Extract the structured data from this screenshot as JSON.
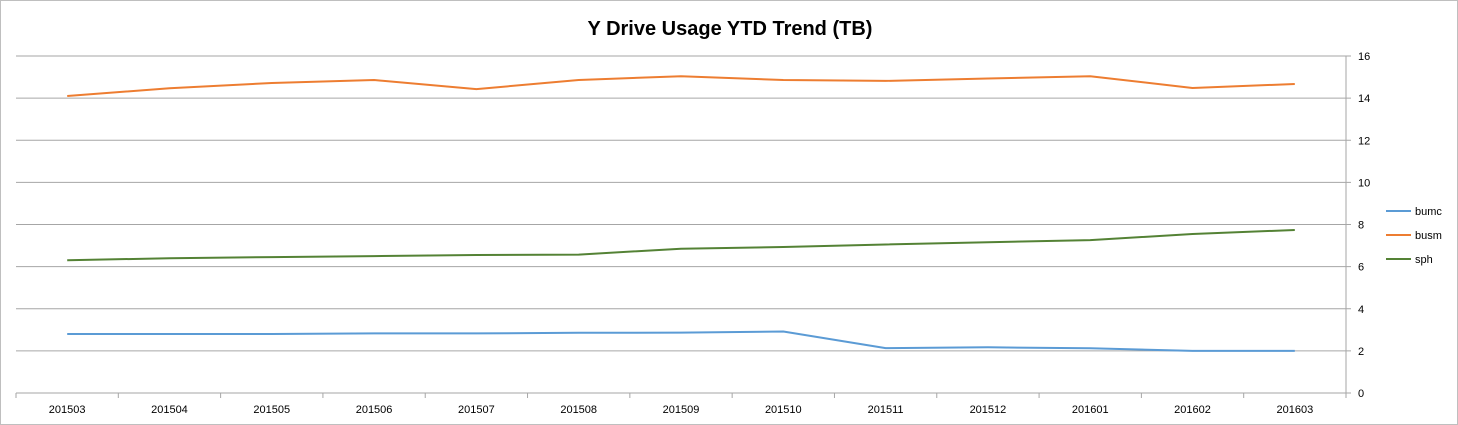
{
  "chart_data": {
    "type": "line",
    "title": "Y Drive Usage YTD Trend (TB)",
    "categories": [
      "201503",
      "201504",
      "201505",
      "201506",
      "201507",
      "201508",
      "201509",
      "201510",
      "201511",
      "201512",
      "201601",
      "201602",
      "201603"
    ],
    "ylim": [
      0,
      16
    ],
    "yticks": [
      0,
      2,
      4,
      6,
      8,
      10,
      12,
      14,
      16
    ],
    "y_axis_side": "right",
    "grid": true,
    "legend_position": "right",
    "series": [
      {
        "name": "bumc",
        "color": "#5b9bd5",
        "values": [
          2.8,
          2.8,
          2.8,
          2.83,
          2.83,
          2.86,
          2.87,
          2.92,
          2.13,
          2.17,
          2.12,
          2.0,
          2.0
        ]
      },
      {
        "name": "busm",
        "color": "#ed7d31",
        "values": [
          14.1,
          14.47,
          14.72,
          14.86,
          14.43,
          14.86,
          15.04,
          14.86,
          14.82,
          14.93,
          15.04,
          14.48,
          14.67
        ]
      },
      {
        "name": "sph",
        "color": "#548235",
        "values": [
          6.3,
          6.4,
          6.45,
          6.5,
          6.55,
          6.57,
          6.85,
          6.93,
          7.05,
          7.16,
          7.26,
          7.55,
          7.74
        ]
      }
    ]
  }
}
